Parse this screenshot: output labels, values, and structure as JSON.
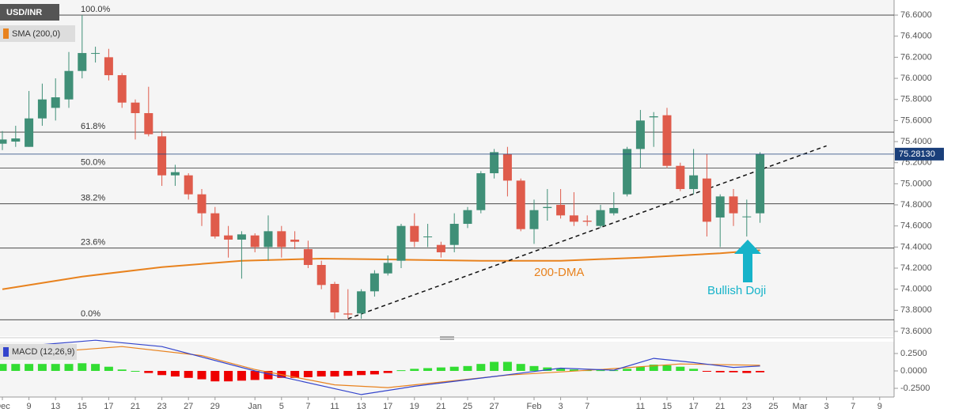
{
  "chart_data": {
    "type": "candlestick",
    "title": "USD/INR",
    "indicator": "SMA (200,0)",
    "categories": [
      "Dec",
      null,
      "9",
      null,
      "13",
      null,
      "15",
      null,
      "17",
      null,
      "21",
      null,
      "23",
      null,
      "27",
      null,
      "29",
      null,
      null,
      "Jan",
      null,
      "5",
      null,
      "7",
      null,
      "11",
      null,
      "13",
      null,
      "17",
      null,
      "19",
      null,
      "21",
      null,
      "25",
      null,
      "27",
      null,
      null,
      "Feb",
      null,
      "3",
      null,
      "7",
      null,
      null,
      null,
      "11",
      null,
      "15",
      null,
      "17",
      null,
      "21",
      null,
      "23",
      null,
      "25",
      null,
      "Mar",
      null,
      "3",
      null,
      "7",
      null,
      "9"
    ],
    "open": [
      75.38,
      75.4,
      75.35,
      75.62,
      75.72,
      75.8,
      76.07,
      76.24,
      76.2,
      76.03,
      75.77,
      75.67,
      75.45,
      75.08,
      75.08,
      74.9,
      74.72,
      74.51,
      74.47,
      74.51,
      74.4,
      74.55,
      74.47,
      74.38,
      74.23,
      74.05,
      73.77,
      73.77,
      73.98,
      74.15,
      74.27,
      74.6,
      74.5,
      74.42,
      74.42,
      74.62,
      74.75,
      75.1,
      75.28,
      75.03,
      74.57,
      74.77,
      74.8,
      74.7,
      74.65,
      74.6,
      74.72,
      74.9,
      75.33,
      75.63,
      75.65,
      75.17,
      74.95,
      75.05,
      74.68,
      74.88,
      74.69,
      74.72,
      null,
      null,
      null,
      null,
      null,
      null,
      null,
      null,
      null
    ],
    "high": [
      75.5,
      75.55,
      75.88,
      75.95,
      76.0,
      76.25,
      76.6,
      76.3,
      76.28,
      76.05,
      75.8,
      75.92,
      75.5,
      75.18,
      75.1,
      74.95,
      74.78,
      74.6,
      74.55,
      74.53,
      74.7,
      74.6,
      74.55,
      74.46,
      74.27,
      74.07,
      74.0,
      74.0,
      74.18,
      74.32,
      74.62,
      74.72,
      74.62,
      74.45,
      74.72,
      74.78,
      75.12,
      75.33,
      75.35,
      75.05,
      74.85,
      74.95,
      74.95,
      74.92,
      74.7,
      74.8,
      74.92,
      75.35,
      75.7,
      75.68,
      75.72,
      75.2,
      75.33,
      75.28,
      74.9,
      74.95,
      74.85,
      75.3,
      null,
      null,
      null,
      null,
      null,
      null,
      null,
      null,
      null
    ],
    "low": [
      75.32,
      75.35,
      75.35,
      75.55,
      75.6,
      75.72,
      76.0,
      76.15,
      75.98,
      75.72,
      75.42,
      75.45,
      74.98,
      74.98,
      74.85,
      74.6,
      74.48,
      74.3,
      74.1,
      74.35,
      74.27,
      74.3,
      74.38,
      74.2,
      74.0,
      73.72,
      73.72,
      73.72,
      73.93,
      74.13,
      74.2,
      74.4,
      74.4,
      74.3,
      74.35,
      74.58,
      74.72,
      75.05,
      74.88,
      74.55,
      74.43,
      74.65,
      74.67,
      74.6,
      74.6,
      74.58,
      74.7,
      74.88,
      75.15,
      75.35,
      75.15,
      74.93,
      74.9,
      74.5,
      74.4,
      74.6,
      74.5,
      74.63,
      null,
      null,
      null,
      null,
      null,
      null,
      null,
      null,
      null
    ],
    "close": [
      75.42,
      75.43,
      75.62,
      75.8,
      75.82,
      76.07,
      76.24,
      76.24,
      76.03,
      75.77,
      75.67,
      75.47,
      75.08,
      75.11,
      74.9,
      74.72,
      74.5,
      74.47,
      74.52,
      74.4,
      74.55,
      74.4,
      74.45,
      74.23,
      74.04,
      73.78,
      73.76,
      73.98,
      74.15,
      74.25,
      74.6,
      74.45,
      74.5,
      74.35,
      74.62,
      74.75,
      75.1,
      75.3,
      75.03,
      74.57,
      74.75,
      74.78,
      74.7,
      74.64,
      74.64,
      74.75,
      74.77,
      75.33,
      75.6,
      75.64,
      75.17,
      74.95,
      75.08,
      74.64,
      74.88,
      74.72,
      74.69,
      75.28,
      null,
      null,
      null,
      null,
      null,
      null,
      null,
      null,
      null
    ],
    "up_color": "#3f8f77",
    "down_color": "#df5b4b",
    "last_price": {
      "value": 75.2813,
      "label": "75.28130"
    },
    "ylim": [
      73.555,
      76.743
    ],
    "yticks": [
      {
        "value": 73.6,
        "label": "73.6000"
      },
      {
        "value": 73.8,
        "label": "73.8000"
      },
      {
        "value": 74.0,
        "label": "74.0000"
      },
      {
        "value": 74.2,
        "label": "74.2000"
      },
      {
        "value": 74.4,
        "label": "74.4000"
      },
      {
        "value": 74.6,
        "label": "74.6000"
      },
      {
        "value": 74.8,
        "label": "74.8000"
      },
      {
        "value": 75.0,
        "label": "75.0000"
      },
      {
        "value": 75.2,
        "label": "75.2000"
      },
      {
        "value": 75.4,
        "label": "75.4000"
      },
      {
        "value": 75.6,
        "label": "75.6000"
      },
      {
        "value": 75.8,
        "label": "75.8000"
      },
      {
        "value": 76.0,
        "label": "76.0000"
      },
      {
        "value": 76.2,
        "label": "76.2000"
      },
      {
        "value": 76.4,
        "label": "76.4000"
      },
      {
        "value": 76.6,
        "label": "76.6000"
      }
    ],
    "fib_levels": [
      {
        "value": 76.6,
        "label": "100.0%"
      },
      {
        "value": 75.49,
        "label": "61.8%"
      },
      {
        "value": 75.15,
        "label": "50.0%"
      },
      {
        "value": 74.81,
        "label": "38.2%"
      },
      {
        "value": 74.39,
        "label": "23.6%"
      },
      {
        "value": 73.71,
        "label": "0.0%"
      }
    ],
    "sma": {
      "name": "200-DMA",
      "color": "#e8821e",
      "x": [
        0,
        6,
        12,
        18,
        24,
        30,
        36,
        42,
        48,
        54,
        57
      ],
      "values": [
        74.0,
        74.12,
        74.21,
        74.27,
        74.29,
        74.28,
        74.27,
        74.27,
        74.3,
        74.34,
        74.37
      ]
    },
    "trendline": {
      "x": [
        26,
        62
      ],
      "values": [
        73.72,
        75.36
      ]
    },
    "annotation": "Bullish Doji",
    "macd": {
      "title": "MACD (12,26,9)",
      "ylim": [
        -0.352,
        0.42
      ],
      "yticks": [
        {
          "value": 0.25,
          "label": "0.2500"
        },
        {
          "value": 0,
          "label": "0.0000"
        },
        {
          "value": -0.25,
          "label": "-0.2500"
        }
      ],
      "histogram": [
        0.1,
        0.1,
        0.1,
        0.1,
        0.1,
        0.1,
        0.11,
        0.1,
        0.06,
        0.02,
        0.0,
        -0.03,
        -0.06,
        -0.08,
        -0.1,
        -0.12,
        -0.15,
        -0.15,
        -0.14,
        -0.13,
        -0.12,
        -0.1,
        -0.1,
        -0.09,
        -0.08,
        -0.08,
        -0.07,
        -0.06,
        -0.05,
        -0.03,
        0.01,
        0.03,
        0.04,
        0.05,
        0.06,
        0.07,
        0.1,
        0.13,
        0.13,
        0.1,
        0.07,
        0.05,
        0.04,
        0.02,
        0.01,
        0.01,
        0.01,
        0.03,
        0.06,
        0.09,
        0.08,
        0.06,
        0.03,
        -0.01,
        -0.02,
        -0.02,
        -0.03,
        -0.02,
        null,
        null,
        null,
        null,
        null,
        null,
        null,
        null,
        null
      ],
      "up_color": "#33dd33",
      "down_color": "#ee0000",
      "macd_line": {
        "color": "#3344cc",
        "x": [
          0,
          7,
          12,
          19,
          27,
          31,
          37,
          42,
          46,
          49,
          52,
          55,
          57
        ],
        "values": [
          0.33,
          0.44,
          0.35,
          0.0,
          -0.34,
          -0.22,
          -0.08,
          0.04,
          0.01,
          0.18,
          0.12,
          0.05,
          0.07
        ]
      },
      "signal_line": {
        "color": "#e8821e",
        "x": [
          0,
          9,
          15,
          19,
          25,
          29,
          38,
          45,
          51,
          57
        ],
        "values": [
          0.22,
          0.35,
          0.22,
          0.02,
          -0.2,
          -0.24,
          -0.06,
          0.02,
          0.1,
          0.08
        ]
      }
    }
  }
}
